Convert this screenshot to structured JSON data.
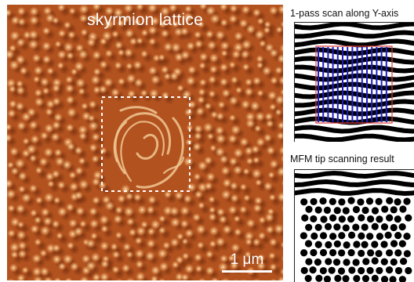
{
  "main_panel": {
    "title": "skyrmion lattice",
    "scale_label": "1 μm",
    "colors": {
      "base": "#b2521f",
      "bright": "#f4d09a",
      "dark": "#5a1f06"
    }
  },
  "side_top": {
    "title": "1-pass scan along Y-axis",
    "colors": {
      "stripe": "#000000",
      "scan_line": "#1c1cc8",
      "box": "#e23a3a"
    }
  },
  "side_bottom": {
    "title": "MFM tip scanning result"
  }
}
